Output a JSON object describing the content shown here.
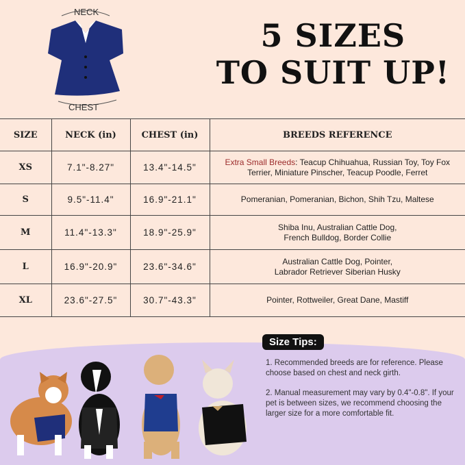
{
  "title_lines": [
    "5 SIZES",
    "TO SUIT UP!"
  ],
  "diagram": {
    "neck_label": "NECK",
    "chest_label": "CHEST"
  },
  "table": {
    "headers": [
      "SIZE",
      "NECK (in)",
      "CHEST (in)",
      "BREEDS REFERENCE"
    ],
    "rows": [
      {
        "size": "XS",
        "neck": "7.1\"-8.27\"",
        "chest": "13.4\"-14.5\"",
        "breeds_prefix": "Extra Small Breeds",
        "breeds": ": Teacup Chihuahua, Russian Toy, Toy Fox Terrier, Miniature Pinscher, Teacup Poodle, Ferret"
      },
      {
        "size": "S",
        "neck": "9.5\"-11.4\"",
        "chest": "16.9\"-21.1\"",
        "breeds": "Pomeranian, Pomeranian, Bichon, Shih Tzu, Maltese"
      },
      {
        "size": "M",
        "neck": "11.4\"-13.3\"",
        "chest": "18.9\"-25.9\"",
        "breeds": "Shiba Inu, Australian Cattle Dog, French Bulldog, Border Collie"
      },
      {
        "size": "L",
        "neck": "16.9\"-20.9\"",
        "chest": "23.6\"-34.6\"",
        "breeds": "Australian Cattle Dog, Pointer, Labrador Retriever Siberian Husky"
      },
      {
        "size": "XL",
        "neck": "23.6\"-27.5\"",
        "chest": "30.7\"-43.3\"",
        "breeds": "Pointer, Rottweiler, Great Dane, Mastiff"
      }
    ]
  },
  "tips": {
    "heading": "Size Tips:",
    "items": [
      "1. Recommended breeds are for reference. Please choose based on chest and neck girth.",
      "2. Manual measurement may vary by 0.4\"-0.8\". If your pet is between sizes, we recommend choosing the larger size for a more comfortable fit."
    ]
  },
  "colors": {
    "background": "#fde8dc",
    "accent_red": "#9b2b2b",
    "purple": "#dccbed",
    "vest_navy": "#1f2f7a"
  }
}
